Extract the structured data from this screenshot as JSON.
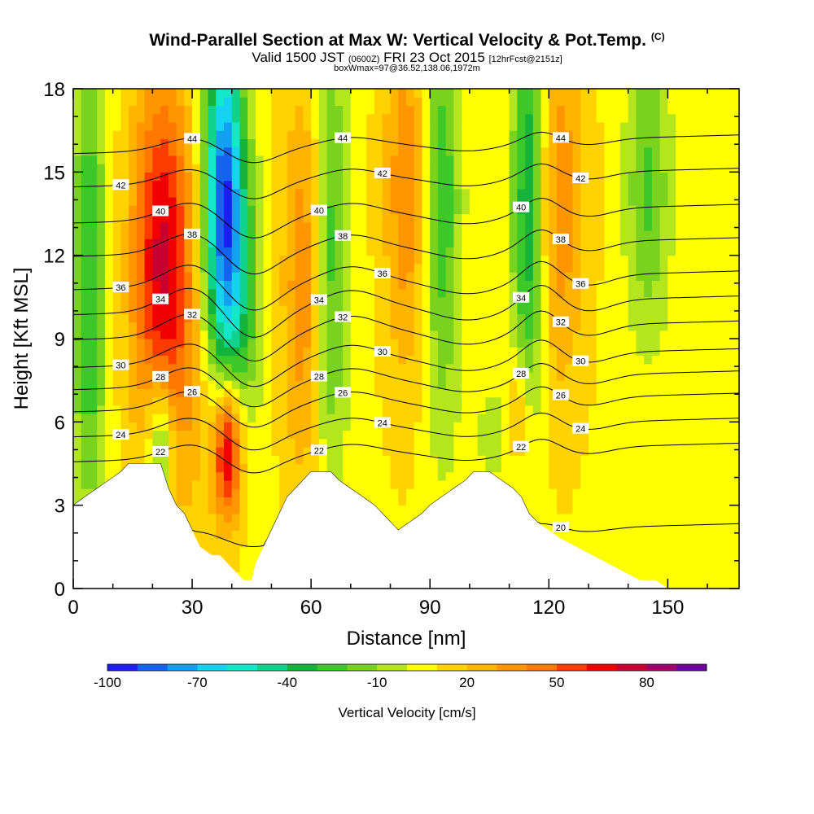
{
  "title": {
    "main": "Wind-Parallel Section at Max W: Vertical Velocity & Pot.Temp.",
    "copyright": "(C)",
    "valid_prefix": "Valid 1500 JST",
    "valid_utc": "(0600Z)",
    "valid_date": "FRI 23 Oct 2015",
    "forecast": "[12hrFcst@2151z]",
    "box_info": "boxWmax=97@36.52,138.06,1972m"
  },
  "chart_data": {
    "type": "heatmap",
    "xlabel": "Distance [nm]",
    "ylabel": "Height [Kft MSL]",
    "xlim": [
      0,
      168
    ],
    "ylim": [
      0,
      18
    ],
    "x_ticks": [
      0,
      30,
      60,
      90,
      120,
      150
    ],
    "y_ticks": [
      0,
      3,
      6,
      9,
      12,
      15,
      18
    ],
    "terrain": [
      [
        0,
        3.0
      ],
      [
        3,
        3.3
      ],
      [
        6,
        3.6
      ],
      [
        9,
        3.9
      ],
      [
        12,
        4.2
      ],
      [
        14,
        4.5
      ],
      [
        16,
        4.5
      ],
      [
        20,
        4.5
      ],
      [
        22,
        4.5
      ],
      [
        24,
        3.6
      ],
      [
        26,
        3.0
      ],
      [
        28,
        2.7
      ],
      [
        30,
        2.1
      ],
      [
        32,
        1.5
      ],
      [
        35,
        1.2
      ],
      [
        37,
        1.2
      ],
      [
        39,
        0.9
      ],
      [
        41,
        0.6
      ],
      [
        43,
        0.3
      ],
      [
        45,
        0.3
      ],
      [
        46,
        0.9
      ],
      [
        48,
        1.5
      ],
      [
        50,
        2.1
      ],
      [
        52,
        2.7
      ],
      [
        54,
        3.3
      ],
      [
        56,
        3.6
      ],
      [
        58,
        3.9
      ],
      [
        60,
        4.2
      ],
      [
        63,
        4.2
      ],
      [
        65,
        4.2
      ],
      [
        67,
        3.9
      ],
      [
        70,
        3.6
      ],
      [
        73,
        3.3
      ],
      [
        76,
        3.0
      ],
      [
        78,
        2.7
      ],
      [
        80,
        2.4
      ],
      [
        82,
        2.1
      ],
      [
        85,
        2.4
      ],
      [
        88,
        2.7
      ],
      [
        90,
        3.0
      ],
      [
        93,
        3.3
      ],
      [
        96,
        3.6
      ],
      [
        99,
        3.9
      ],
      [
        101,
        4.2
      ],
      [
        105,
        4.2
      ],
      [
        108,
        3.9
      ],
      [
        111,
        3.6
      ],
      [
        113,
        3.3
      ],
      [
        115,
        2.7
      ],
      [
        117,
        2.4
      ],
      [
        120,
        2.1
      ],
      [
        123,
        1.8
      ],
      [
        127,
        1.5
      ],
      [
        131,
        1.2
      ],
      [
        135,
        0.9
      ],
      [
        139,
        0.6
      ],
      [
        143,
        0.3
      ],
      [
        147,
        0.3
      ],
      [
        150,
        0.0
      ],
      [
        168,
        0.0
      ]
    ],
    "theta_contours": [
      {
        "label": "20",
        "y0": 2.0
      },
      {
        "label": "22",
        "y0": 4.9
      },
      {
        "label": "24",
        "y0": 5.8
      },
      {
        "label": "26",
        "y0": 6.7
      },
      {
        "label": "28",
        "y0": 7.5
      },
      {
        "label": "30",
        "y0": 8.3
      },
      {
        "label": "32",
        "y0": 9.3
      },
      {
        "label": "34",
        "y0": 10.2
      },
      {
        "label": "36",
        "y0": 11.1
      },
      {
        "label": "38",
        "y0": 12.3
      },
      {
        "label": "40",
        "y0": 13.5
      },
      {
        "label": "42",
        "y0": 14.8
      },
      {
        "label": "44",
        "y0": 16.0
      }
    ],
    "colorbar": {
      "title": "Vertical Velocity [cm/s]",
      "min": -100,
      "max": 100,
      "step": 10,
      "tick_labels": [
        "-100",
        "-70",
        "-40",
        "-10",
        "20",
        "50",
        "80"
      ],
      "tick_values": [
        -100,
        -70,
        -40,
        -10,
        20,
        50,
        80
      ],
      "colors": [
        "#1e1ef0",
        "#1464f0",
        "#14a0f0",
        "#14d2f0",
        "#14e6c8",
        "#10d28c",
        "#14b43c",
        "#3cc828",
        "#78d21e",
        "#b4e61e",
        "#ffff00",
        "#ffd200",
        "#ffb400",
        "#ff9600",
        "#ff7800",
        "#ff3c00",
        "#f00000",
        "#c80032",
        "#a0006e",
        "#6e00a0"
      ]
    },
    "w_features": [
      {
        "kind": "up",
        "x": 22,
        "y": 12.5,
        "sx": 5,
        "sy": 4.5,
        "amp": 48
      },
      {
        "kind": "up",
        "x": 26,
        "y": 9,
        "sx": 7,
        "sy": 5,
        "amp": 25
      },
      {
        "kind": "down",
        "x": 38,
        "y": 15,
        "sx": 3.5,
        "sy": 4,
        "amp": -82
      },
      {
        "kind": "down",
        "x": 40,
        "y": 10.5,
        "sx": 5,
        "sy": 3.5,
        "amp": -45
      },
      {
        "kind": "up",
        "x": 39,
        "y": 5,
        "sx": 2.6,
        "sy": 1.8,
        "amp": 70
      },
      {
        "kind": "down",
        "x": 4,
        "y": 11,
        "sx": 3,
        "sy": 6,
        "amp": -40
      },
      {
        "kind": "down",
        "x": 22,
        "y": 5.3,
        "sx": 2.5,
        "sy": 1.8,
        "amp": -45
      },
      {
        "kind": "down",
        "x": 65,
        "y": 12,
        "sx": 3,
        "sy": 6,
        "amp": -35
      },
      {
        "kind": "up",
        "x": 58,
        "y": 11,
        "sx": 4,
        "sy": 5,
        "amp": 30
      },
      {
        "kind": "down",
        "x": 93,
        "y": 14,
        "sx": 3.5,
        "sy": 6,
        "amp": -35
      },
      {
        "kind": "up",
        "x": 84,
        "y": 14.5,
        "sx": 4,
        "sy": 5,
        "amp": 30
      },
      {
        "kind": "down",
        "x": 115,
        "y": 14,
        "sx": 3,
        "sy": 5.5,
        "amp": -55
      },
      {
        "kind": "up",
        "x": 122,
        "y": 14,
        "sx": 5,
        "sy": 5,
        "amp": 30
      },
      {
        "kind": "up",
        "x": 112,
        "y": 6,
        "sx": 2.5,
        "sy": 1.5,
        "amp": 30
      },
      {
        "kind": "down",
        "x": 145,
        "y": 14.5,
        "sx": 4,
        "sy": 4,
        "amp": -30
      },
      {
        "kind": "down",
        "x": 108,
        "y": 5.5,
        "sx": 4,
        "sy": 1.2,
        "amp": -20
      }
    ]
  }
}
